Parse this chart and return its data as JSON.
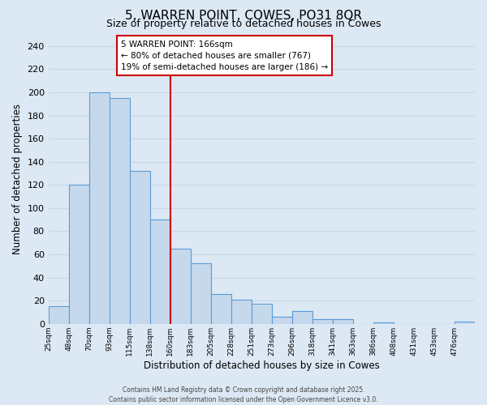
{
  "title": "5, WARREN POINT, COWES, PO31 8QR",
  "subtitle": "Size of property relative to detached houses in Cowes",
  "xlabel": "Distribution of detached houses by size in Cowes",
  "ylabel": "Number of detached properties",
  "bar_values": [
    15,
    120,
    200,
    195,
    132,
    90,
    65,
    52,
    26,
    21,
    17,
    6,
    11,
    4,
    4,
    0,
    1,
    0,
    0,
    0,
    2
  ],
  "bin_labels": [
    "25sqm",
    "48sqm",
    "70sqm",
    "93sqm",
    "115sqm",
    "138sqm",
    "160sqm",
    "183sqm",
    "205sqm",
    "228sqm",
    "251sqm",
    "273sqm",
    "296sqm",
    "318sqm",
    "341sqm",
    "363sqm",
    "386sqm",
    "408sqm",
    "431sqm",
    "453sqm",
    "476sqm"
  ],
  "bar_color": "#c6d9ec",
  "bar_edge_color": "#5b9bd5",
  "vline_x_index": 6,
  "vline_color": "#cc0000",
  "annotation_title": "5 WARREN POINT: 166sqm",
  "annotation_line1": "← 80% of detached houses are smaller (767)",
  "annotation_line2": "19% of semi-detached houses are larger (186) →",
  "annotation_box_color": "#ffffff",
  "annotation_box_edge_color": "#cc0000",
  "ylim": [
    0,
    250
  ],
  "yticks": [
    0,
    20,
    40,
    60,
    80,
    100,
    120,
    140,
    160,
    180,
    200,
    220,
    240
  ],
  "grid_color": "#c8d8e8",
  "background_color": "#dce8f4",
  "plot_bg_color": "#dce8f4",
  "footer1": "Contains HM Land Registry data © Crown copyright and database right 2025.",
  "footer2": "Contains public sector information licensed under the Open Government Licence v3.0."
}
